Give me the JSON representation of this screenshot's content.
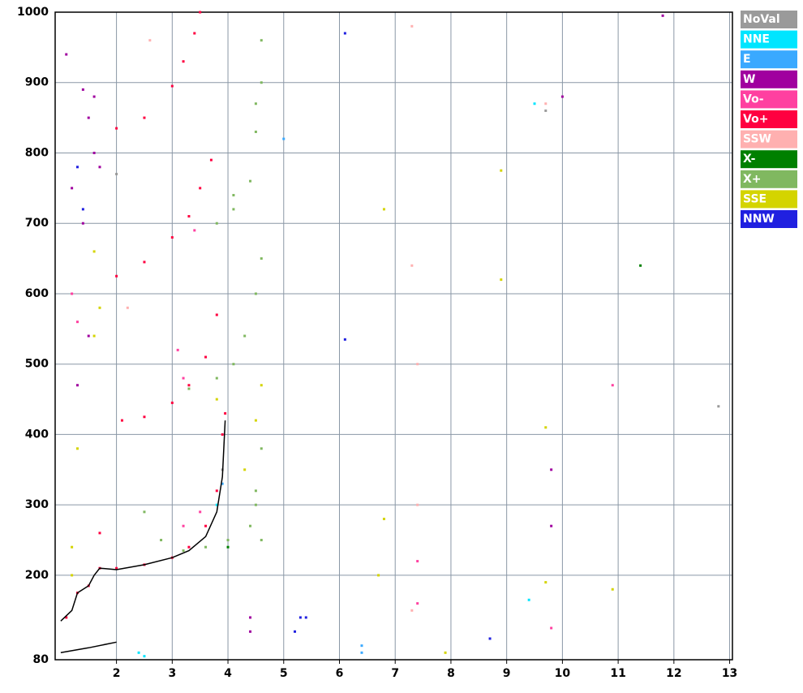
{
  "chart_data": {
    "type": "scatter",
    "xlim": [
      0.9,
      13.05
    ],
    "ylim": [
      80,
      1000
    ],
    "xticks": [
      2,
      3,
      4,
      5,
      6,
      7,
      8,
      9,
      10,
      11,
      12,
      13
    ],
    "yticks": [
      80,
      200,
      300,
      400,
      500,
      600,
      700,
      800,
      900,
      1000
    ],
    "grid": true,
    "legend": "right",
    "series": [
      {
        "name": "NoVal",
        "color": "#9a9a9a",
        "x": [
          3.9,
          2.0,
          12.8,
          9.7
        ],
        "values": [
          350,
          770,
          440,
          860
        ]
      },
      {
        "name": "NNE",
        "color": "#00e5ff",
        "x": [
          2.4,
          2.5,
          3.8,
          9.5,
          9.4
        ],
        "values": [
          90,
          85,
          300,
          870,
          165
        ]
      },
      {
        "name": "E",
        "color": "#3aa9ff",
        "x": [
          5.0,
          6.4,
          6.4,
          3.9
        ],
        "values": [
          820,
          100,
          90,
          330
        ]
      },
      {
        "name": "W",
        "color": "#a0009f",
        "x": [
          1.4,
          1.5,
          1.6,
          1.7,
          1.6,
          1.4,
          1.3,
          1.5,
          1.2,
          1.1,
          4.4,
          4.4,
          9.8,
          9.8,
          10.0,
          11.8
        ],
        "values": [
          890,
          850,
          800,
          780,
          880,
          700,
          470,
          540,
          750,
          940,
          140,
          120,
          350,
          270,
          880,
          995
        ]
      },
      {
        "name": "Vo-",
        "color": "#ff40a0",
        "x": [
          1.2,
          1.3,
          3.1,
          3.2,
          3.4,
          3.2,
          3.5,
          9.8,
          7.4,
          7.4,
          10.9
        ],
        "values": [
          600,
          560,
          520,
          480,
          690,
          270,
          290,
          125,
          220,
          160,
          470
        ]
      },
      {
        "name": "Vo+",
        "color": "#ff0040",
        "x": [
          1.1,
          1.3,
          1.5,
          1.7,
          1.7,
          2.0,
          2.5,
          3.0,
          3.3,
          3.6,
          3.8,
          3.9,
          3.95,
          2.1,
          2.5,
          3.0,
          3.3,
          3.6,
          3.8,
          2.0,
          2.5,
          3.0,
          3.3,
          3.5,
          3.7,
          2.0,
          2.5,
          3.0,
          3.2,
          3.4,
          3.5
        ],
        "values": [
          140,
          175,
          185,
          210,
          260,
          210,
          215,
          225,
          240,
          270,
          320,
          400,
          430,
          420,
          425,
          445,
          470,
          510,
          570,
          625,
          645,
          680,
          710,
          750,
          790,
          835,
          850,
          895,
          930,
          970,
          1000
        ]
      },
      {
        "name": "SSW",
        "color": "#ffb0b0",
        "x": [
          2.2,
          7.3,
          7.3,
          7.4,
          7.4,
          7.3,
          2.6,
          9.7
        ],
        "values": [
          580,
          980,
          640,
          500,
          300,
          150,
          960,
          870
        ]
      },
      {
        "name": "X-",
        "color": "#008000",
        "x": [
          11.4,
          4.0
        ],
        "values": [
          640,
          240
        ]
      },
      {
        "name": "X+",
        "color": "#80b860",
        "x": [
          2.5,
          2.8,
          3.2,
          3.6,
          4.0,
          4.4,
          4.5,
          4.6,
          4.5,
          4.6,
          3.3,
          3.8,
          4.1,
          4.3,
          4.5,
          4.6,
          3.8,
          4.1,
          4.4,
          4.5,
          4.6,
          4.6,
          4.5,
          4.1
        ],
        "values": [
          290,
          250,
          235,
          240,
          250,
          270,
          320,
          380,
          300,
          250,
          465,
          480,
          500,
          540,
          600,
          650,
          700,
          720,
          760,
          830,
          900,
          960,
          870,
          740
        ]
      },
      {
        "name": "SSE",
        "color": "#d4d400",
        "x": [
          1.2,
          1.6,
          1.7,
          1.6,
          1.3,
          1.2,
          3.8,
          4.5,
          4.6,
          4.3,
          6.8,
          6.8,
          6.7,
          7.9,
          8.9,
          8.9,
          9.7,
          9.7,
          10.9
        ],
        "values": [
          240,
          660,
          580,
          540,
          380,
          200,
          450,
          420,
          470,
          350,
          720,
          280,
          200,
          90,
          775,
          620,
          410,
          190,
          180
        ]
      },
      {
        "name": "NNW",
        "color": "#2020e0",
        "x": [
          1.3,
          6.1,
          6.1,
          5.2,
          5.3,
          5.4,
          8.7,
          1.4
        ],
        "values": [
          780,
          970,
          535,
          120,
          140,
          140,
          110,
          720
        ]
      },
      {
        "color": "#000000",
        "mode": "line",
        "x": [
          1.0,
          1.5,
          2.0,
          null,
          1.0,
          1.2,
          1.3,
          1.5,
          1.6,
          1.7,
          2.0,
          2.5,
          3.0,
          3.3,
          3.6,
          3.8,
          3.9,
          3.95
        ],
        "values": [
          90,
          97,
          105,
          null,
          135,
          150,
          175,
          185,
          200,
          210,
          208,
          215,
          225,
          235,
          255,
          290,
          340,
          420
        ]
      }
    ]
  }
}
